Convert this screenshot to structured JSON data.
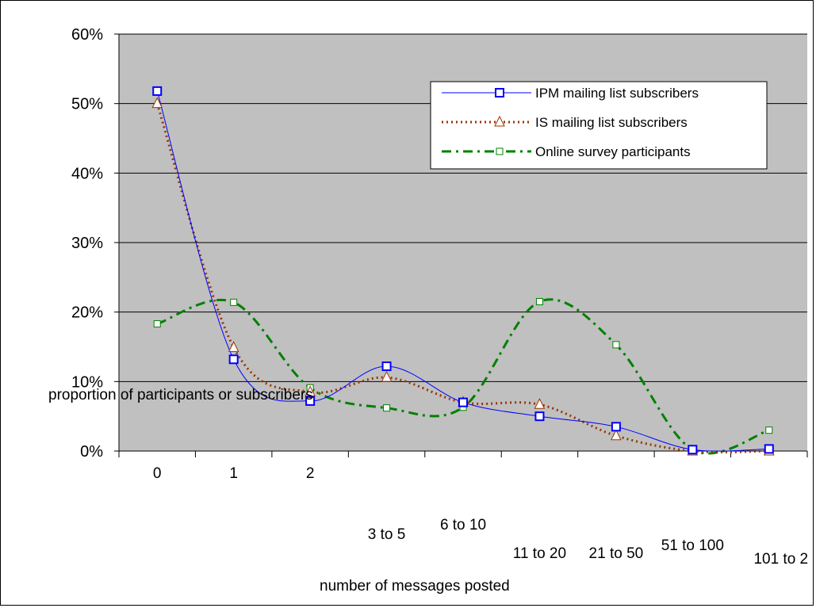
{
  "chart_data": {
    "type": "line",
    "smoothed": true,
    "ylabel": "proportion of participants or subscribers",
    "xlabel": "number of messages posted",
    "categories": [
      "0",
      "1",
      "2",
      "3 to 5",
      "6 to 10",
      "11 to 20",
      "21 to 50",
      "51 to 100",
      "101 to 2"
    ],
    "ylim": [
      0,
      60
    ],
    "yticks": [
      "0%",
      "10%",
      "20%",
      "30%",
      "40%",
      "50%",
      "60%"
    ],
    "grid": true,
    "legend_position": "top-right",
    "plot_background": "#c0c0c0",
    "series": [
      {
        "name": "IPM mailing list subscribers",
        "values": [
          51.8,
          13.2,
          7.2,
          12.2,
          7.0,
          5.0,
          3.5,
          0.2,
          0.3
        ],
        "color": "#0000ff",
        "marker": "square",
        "line": "solid"
      },
      {
        "name": "IS mailing list subscribers",
        "values": [
          50.0,
          14.9,
          8.5,
          10.6,
          7.0,
          6.7,
          2.2,
          0.0,
          0.0
        ],
        "color": "#993300",
        "marker": "triangle",
        "line": "dotted"
      },
      {
        "name": "Online survey participants",
        "values": [
          18.3,
          21.4,
          9.1,
          6.2,
          6.3,
          21.5,
          15.3,
          0.2,
          3.0
        ],
        "color": "#008000",
        "marker": "square",
        "line": "dashdot"
      }
    ]
  }
}
